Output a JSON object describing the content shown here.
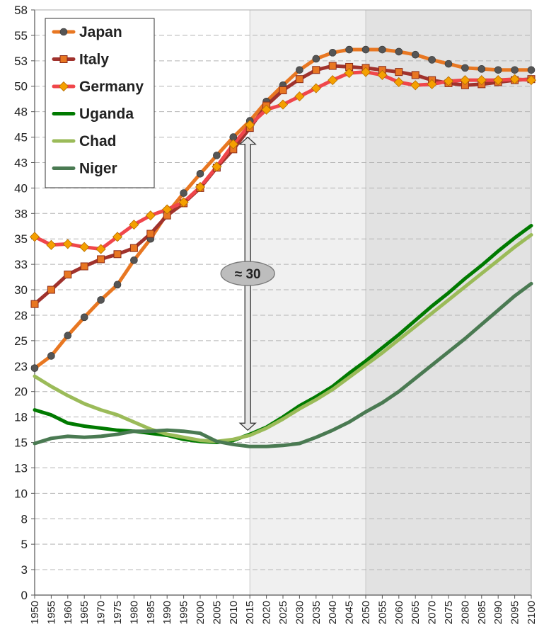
{
  "chart_data": {
    "type": "line",
    "title": "",
    "xlabel": "",
    "ylabel": "",
    "x": [
      1950,
      1955,
      1960,
      1965,
      1970,
      1975,
      1980,
      1985,
      1990,
      1995,
      2000,
      2005,
      2010,
      2015,
      2020,
      2025,
      2030,
      2035,
      2040,
      2045,
      2050,
      2055,
      2060,
      2065,
      2070,
      2075,
      2080,
      2085,
      2090,
      2095,
      2100
    ],
    "xlim": [
      1950,
      2100
    ],
    "ylim": [
      0,
      57.5
    ],
    "y_tick_values": [
      0,
      2.5,
      5,
      7.5,
      10,
      12.5,
      15,
      17.5,
      20,
      22.5,
      25,
      27.5,
      30,
      32.5,
      35,
      37.5,
      40,
      42.5,
      45,
      47.5,
      50,
      52.5,
      55,
      57.5
    ],
    "y_tick_labels": [
      "0",
      "3",
      "5",
      "8",
      "10",
      "13",
      "15",
      "18",
      "20",
      "23",
      "25",
      "28",
      "30",
      "33",
      "35",
      "38",
      "40",
      "43",
      "45",
      "48",
      "50",
      "53",
      "55",
      "58"
    ],
    "x_tick_labels": [
      "1950",
      "1955",
      "1960",
      "1965",
      "1970",
      "1975",
      "1980",
      "1985",
      "1990",
      "1995",
      "2000",
      "2005",
      "2010",
      "2015",
      "2020",
      "2025",
      "2030",
      "2035",
      "2040",
      "2045",
      "2050",
      "2055",
      "2060",
      "2065",
      "2070",
      "2075",
      "2080",
      "2085",
      "2090",
      "2095",
      "2100"
    ],
    "shaded_regions": [
      {
        "from": 2015,
        "to": 2050,
        "color": "#f0f0f0"
      },
      {
        "from": 2050,
        "to": 2100,
        "color": "#e2e2e2"
      }
    ],
    "legend_position": "top-left",
    "series": [
      {
        "name": "Japan",
        "color": "#e87722",
        "marker": "circle",
        "marker_color": "#555555",
        "values": [
          22.3,
          23.5,
          25.5,
          27.3,
          29.0,
          30.5,
          32.9,
          35.0,
          37.5,
          39.5,
          41.4,
          43.2,
          45.0,
          46.6,
          48.5,
          50.1,
          51.6,
          52.7,
          53.3,
          53.6,
          53.6,
          53.6,
          53.4,
          53.1,
          52.6,
          52.2,
          51.8,
          51.7,
          51.6,
          51.6,
          51.6
        ]
      },
      {
        "name": "Italy",
        "color": "#a0322d",
        "marker": "square",
        "marker_color": "#e87722",
        "values": [
          28.6,
          30.0,
          31.5,
          32.3,
          33.0,
          33.5,
          34.1,
          35.5,
          37.3,
          38.5,
          40.0,
          42.0,
          43.8,
          45.9,
          48.1,
          49.6,
          50.7,
          51.6,
          52.0,
          51.9,
          51.8,
          51.6,
          51.4,
          51.1,
          50.6,
          50.3,
          50.1,
          50.2,
          50.4,
          50.6,
          50.7
        ]
      },
      {
        "name": "Germany",
        "color": "#f0464b",
        "marker": "diamond",
        "marker_color": "#f5a000",
        "values": [
          35.2,
          34.4,
          34.5,
          34.2,
          34.0,
          35.2,
          36.4,
          37.3,
          37.9,
          38.6,
          40.1,
          42.1,
          44.3,
          46.2,
          47.7,
          48.2,
          49.0,
          49.8,
          50.6,
          51.3,
          51.4,
          51.1,
          50.4,
          50.1,
          50.2,
          50.5,
          50.6,
          50.6,
          50.6,
          50.7,
          50.6
        ]
      },
      {
        "name": "Uganda",
        "color": "#007a00",
        "marker": "none",
        "marker_color": "",
        "values": [
          18.2,
          17.7,
          16.9,
          16.6,
          16.4,
          16.2,
          16.1,
          15.9,
          15.7,
          15.3,
          15.1,
          15.0,
          15.2,
          15.8,
          16.5,
          17.5,
          18.6,
          19.5,
          20.5,
          21.8,
          23.0,
          24.3,
          25.6,
          27.0,
          28.4,
          29.7,
          31.1,
          32.4,
          33.8,
          35.1,
          36.3
        ]
      },
      {
        "name": "Chad",
        "color": "#9bbb59",
        "marker": "none",
        "marker_color": "",
        "values": [
          21.5,
          20.5,
          19.6,
          18.8,
          18.2,
          17.7,
          17.0,
          16.3,
          15.8,
          15.5,
          15.2,
          15.1,
          15.3,
          15.7,
          16.4,
          17.3,
          18.3,
          19.2,
          20.2,
          21.4,
          22.6,
          23.8,
          25.1,
          26.4,
          27.7,
          29.0,
          30.3,
          31.6,
          32.9,
          34.2,
          35.4
        ]
      },
      {
        "name": "Niger",
        "color": "#4a7a52",
        "marker": "none",
        "marker_color": "",
        "values": [
          14.9,
          15.4,
          15.6,
          15.5,
          15.6,
          15.8,
          16.1,
          16.1,
          16.2,
          16.1,
          15.9,
          15.1,
          14.8,
          14.6,
          14.6,
          14.7,
          14.9,
          15.5,
          16.2,
          17.0,
          18.0,
          18.9,
          20.0,
          21.3,
          22.6,
          23.9,
          25.2,
          26.6,
          28.0,
          29.4,
          30.6
        ]
      }
    ],
    "annotation": {
      "label": "≈ 30",
      "year": 2015,
      "y_top": 45.0,
      "y_bottom": 16.2,
      "label_y": 31.6
    }
  }
}
